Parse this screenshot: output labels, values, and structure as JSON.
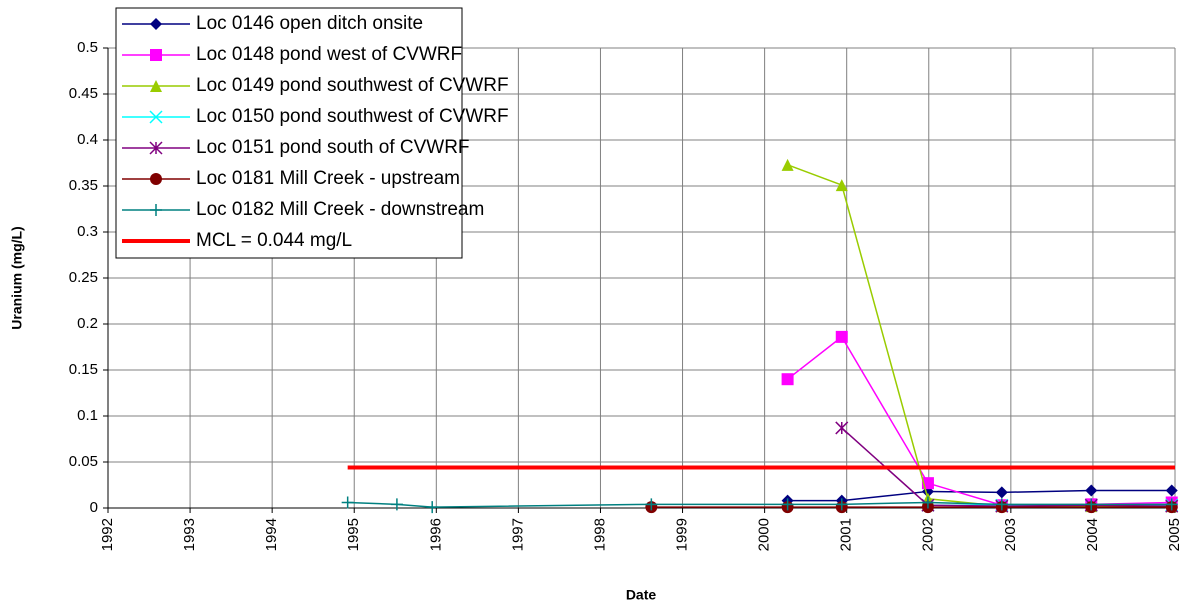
{
  "chart_data": {
    "type": "line",
    "x_label": "Date",
    "y_label": "Uranium (mg/L)",
    "xlim": [
      1992,
      2005
    ],
    "xticks": [
      1992,
      1993,
      1994,
      1995,
      1996,
      1997,
      1998,
      1999,
      2000,
      2001,
      2002,
      2003,
      2004,
      2005
    ],
    "ylim": [
      0,
      0.5
    ],
    "yticks": [
      0,
      0.05,
      0.1,
      0.15,
      0.2,
      0.25,
      0.3,
      0.35,
      0.4,
      0.45,
      0.5
    ],
    "grid": true,
    "legend": "upper left",
    "series": [
      {
        "name": "Loc 0146 open ditch onsite",
        "color": "#000080",
        "marker": "diamond",
        "x": [
          2000.28,
          2000.94,
          2001.99,
          2002.89,
          2003.98,
          2004.96
        ],
        "values": [
          0.008,
          0.008,
          0.018,
          0.017,
          0.019,
          0.019
        ]
      },
      {
        "name": "Loc 0148 pond west of CVWRF",
        "color": "#ff00ff",
        "marker": "square",
        "x": [
          2000.28,
          2000.94,
          2001.99,
          2002.89,
          2003.98,
          2004.96
        ],
        "values": [
          0.14,
          0.186,
          0.027,
          0.003,
          0.004,
          0.006
        ]
      },
      {
        "name": "Loc 0149 pond southwest of CVWRF",
        "color": "#99cc00",
        "marker": "triangle",
        "x": [
          2000.28,
          2000.94,
          2001.99,
          2002.89,
          2003.98,
          2004.96
        ],
        "values": [
          0.373,
          0.351,
          0.01,
          0.002,
          0.002,
          0.002
        ]
      },
      {
        "name": "Loc 0150 pond southwest of CVWRF",
        "color": "#00ffff",
        "marker": "x",
        "x": [
          2001.99,
          2002.89,
          2003.98,
          2004.96
        ],
        "values": [
          0.003,
          0.003,
          0.003,
          0.003
        ]
      },
      {
        "name": "Loc 0151 pond south of CVWRF",
        "color": "#800080",
        "marker": "star",
        "x": [
          2000.94,
          2001.99,
          2002.89,
          2003.98,
          2004.96
        ],
        "values": [
          0.087,
          0.003,
          0.002,
          0.003,
          0.002
        ]
      },
      {
        "name": "Loc 0181 Mill Creek - upstream",
        "color": "#800000",
        "marker": "circle",
        "x": [
          1998.62,
          2000.28,
          2000.94,
          2001.99,
          2002.89,
          2003.98,
          2004.96
        ],
        "values": [
          0.001,
          0.001,
          0.001,
          0.001,
          0.001,
          0.001,
          0.001
        ]
      },
      {
        "name": "Loc 0182 Mill Creek - downstream",
        "color": "#008080",
        "marker": "plus",
        "x": [
          1994.92,
          1995.52,
          1995.95,
          1998.62,
          2000.28,
          2000.94,
          2001.99,
          2002.89,
          2003.98,
          2004.96
        ],
        "values": [
          0.006,
          0.004,
          0.001,
          0.004,
          0.004,
          0.004,
          0.006,
          0.004,
          0.004,
          0.004
        ]
      },
      {
        "name": "MCL = 0.044 mg/L",
        "color": "#ff0000",
        "marker": "none",
        "width": 4,
        "x": [
          1994.92,
          2005
        ],
        "values": [
          0.044,
          0.044
        ]
      }
    ]
  }
}
